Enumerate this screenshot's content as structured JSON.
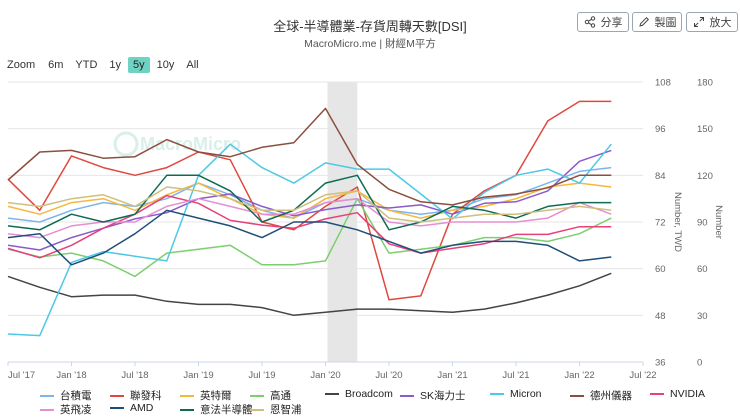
{
  "header": {
    "title": "全球-半導體業-存貨周轉天數[DSI]",
    "subtitle": "MacroMicro.me | 財經M平方"
  },
  "toolbar": {
    "share_label": "分享",
    "image_label": "製圖",
    "enlarge_label": "放大"
  },
  "zoom": {
    "label": "Zoom",
    "options": [
      "6m",
      "YTD",
      "1y",
      "5y",
      "10y",
      "All"
    ],
    "active": "5y"
  },
  "watermark": "MacroMicro",
  "chart_data": {
    "type": "line",
    "x": [
      "Jul '17",
      "Oct '17",
      "Jan '18",
      "Apr '18",
      "Jul '18",
      "Oct '18",
      "Jan '19",
      "Apr '19",
      "Jul '19",
      "Oct '19",
      "Jan '20",
      "Apr '20",
      "Jul '20",
      "Oct '20",
      "Jan '21",
      "Apr '21",
      "Jul '21",
      "Oct '21",
      "Jan '22",
      "Apr '22"
    ],
    "xtick_labels": [
      "Jul '17",
      "Jan '18",
      "Jul '18",
      "Jan '19",
      "Jul '19",
      "Jan '20",
      "Jul '20",
      "Jan '21",
      "Jul '21",
      "Jan '22",
      "Jul '22"
    ],
    "left_axis": {
      "label": "Number, TWD",
      "ticks": [
        "36",
        "48",
        "60",
        "72",
        "84",
        "96",
        "108"
      ],
      "range": [
        36,
        108
      ]
    },
    "right_axis": {
      "label": "Number",
      "ticks": [
        "0",
        "30",
        "60",
        "90",
        "120",
        "150",
        "180"
      ],
      "range": [
        0,
        180
      ]
    },
    "shaded_period": [
      "Jan '20",
      "Apr '20"
    ],
    "series": [
      {
        "name": "台積電",
        "color": "#7cb5ec",
        "axis": "left",
        "values": [
          73,
          72,
          75,
          77,
          76,
          78,
          82,
          79,
          75,
          73,
          77,
          78,
          75,
          74,
          75,
          78,
          79,
          82,
          85,
          86
        ]
      },
      {
        "name": "聯發科",
        "color": "#e0483f",
        "axis": "left",
        "values": [
          83,
          75,
          89,
          86,
          84,
          86,
          90,
          88,
          72,
          70,
          76,
          81,
          52,
          53,
          74,
          80,
          84,
          98,
          103,
          103
        ]
      },
      {
        "name": "英特爾",
        "color": "#f5b83d",
        "axis": "left",
        "values": [
          76,
          74,
          77,
          78,
          75,
          79,
          82,
          78,
          74,
          73,
          78,
          80,
          75,
          73,
          75,
          76,
          78,
          81,
          82,
          81
        ]
      },
      {
        "name": "高通",
        "color": "#7ccf6f",
        "axis": "left",
        "values": [
          65,
          63,
          64,
          62,
          58,
          64,
          65,
          66,
          61,
          61,
          62,
          78,
          64,
          65,
          66,
          68,
          68,
          67,
          69,
          73
        ]
      },
      {
        "name": "Broadcom",
        "color": "#434348",
        "axis": "right",
        "values": [
          55,
          48,
          42,
          43,
          43,
          39,
          37,
          37,
          35,
          30,
          32,
          34,
          34,
          33,
          32,
          34,
          38,
          43,
          49,
          57
        ]
      },
      {
        "name": "SK海力士",
        "color": "#8a5bc9",
        "axis": "right",
        "values": [
          75,
          72,
          80,
          86,
          92,
          96,
          105,
          108,
          100,
          94,
          98,
          101,
          99,
          101,
          95,
          102,
          103,
          110,
          129,
          136
        ]
      },
      {
        "name": "Micron",
        "color": "#4dc9e6",
        "axis": "right",
        "values": [
          18,
          17,
          64,
          71,
          68,
          65,
          120,
          140,
          125,
          115,
          128,
          124,
          124,
          108,
          92,
          109,
          120,
          124,
          115,
          140
        ]
      },
      {
        "name": "德州儀器",
        "color": "#8b4f3f",
        "axis": "right",
        "values": [
          117,
          135,
          136,
          131,
          132,
          143,
          135,
          132,
          138,
          141,
          163,
          127,
          111,
          103,
          101,
          106,
          108,
          112,
          120,
          120
        ]
      },
      {
        "name": "NVIDIA",
        "color": "#e8407a",
        "axis": "right",
        "values": [
          73,
          67,
          75,
          86,
          95,
          107,
          102,
          91,
          88,
          86,
          92,
          96,
          76,
          70,
          73,
          76,
          82,
          82,
          87,
          87
        ]
      },
      {
        "name": "英飛凌",
        "color": "#e58fd2",
        "axis": "left",
        "values": [
          69,
          68,
          71,
          72,
          72,
          76,
          78,
          76,
          74,
          74,
          77,
          78,
          72,
          71,
          72,
          72,
          72,
          73,
          77,
          74
        ]
      },
      {
        "name": "AMD",
        "color": "#1f4e79",
        "axis": "left",
        "values": [
          68,
          69,
          61,
          64,
          69,
          75,
          73,
          71,
          68,
          72,
          72,
          70,
          67,
          64,
          66,
          67,
          67,
          66,
          62,
          63
        ]
      },
      {
        "name": "意法半導體",
        "color": "#0e6b53",
        "axis": "left",
        "values": [
          71,
          70,
          74,
          72,
          74,
          84,
          84,
          80,
          72,
          75,
          82,
          84,
          70,
          72,
          76,
          75,
          73,
          76,
          77,
          77
        ]
      },
      {
        "name": "恩智浦",
        "color": "#cfbf7c",
        "axis": "left",
        "values": [
          77,
          76,
          78,
          79,
          76,
          81,
          80,
          78,
          75,
          75,
          79,
          80,
          73,
          72,
          73,
          74,
          74,
          75,
          76,
          75
        ]
      }
    ]
  }
}
